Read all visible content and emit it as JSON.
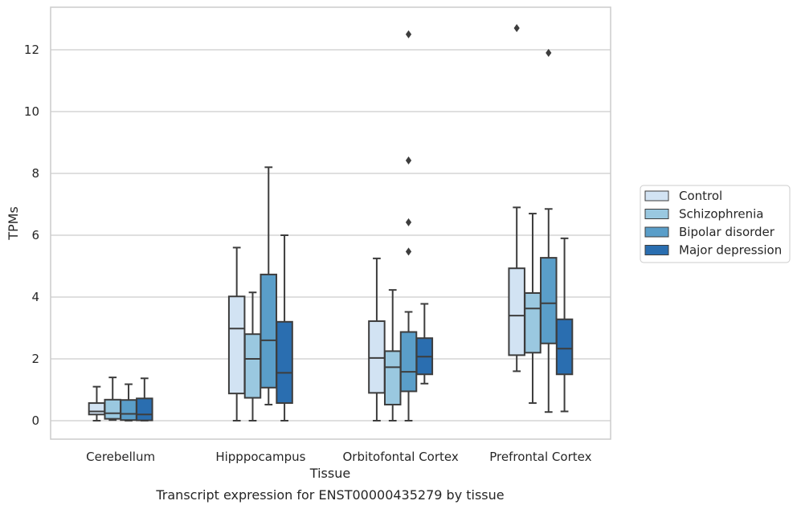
{
  "chart_data": {
    "type": "box",
    "xlabel": "Tissue",
    "ylabel": "TPMs",
    "caption": "Transcript expression for ENST00000435279 by tissue",
    "ylim": [
      -0.6,
      13.3
    ],
    "yticks": [
      0,
      2,
      4,
      6,
      8,
      10,
      12
    ],
    "grid": true,
    "legend_position": "right",
    "categories": [
      "Cerebellum",
      "Hipppocampus",
      "Orbitofontal Cortex",
      "Prefrontal Cortex"
    ],
    "series": [
      {
        "name": "Control",
        "color": "#d2e3f3",
        "boxes": [
          {
            "whisker_low": 0.0,
            "q1": 0.2,
            "median": 0.3,
            "q3": 0.57,
            "whisker_high": 1.1,
            "outliers": []
          },
          {
            "whisker_low": 0.0,
            "q1": 0.88,
            "median": 2.98,
            "q3": 4.02,
            "whisker_high": 5.6,
            "outliers": []
          },
          {
            "whisker_low": 0.0,
            "q1": 0.9,
            "median": 2.03,
            "q3": 3.22,
            "whisker_high": 5.25,
            "outliers": []
          },
          {
            "whisker_low": 1.6,
            "q1": 2.12,
            "median": 3.4,
            "q3": 4.93,
            "whisker_high": 6.9,
            "outliers": [
              12.7
            ]
          }
        ]
      },
      {
        "name": "Schizophrenia",
        "color": "#9ac8e0",
        "boxes": [
          {
            "whisker_low": 0.02,
            "q1": 0.06,
            "median": 0.24,
            "q3": 0.68,
            "whisker_high": 1.4,
            "outliers": []
          },
          {
            "whisker_low": 0.0,
            "q1": 0.74,
            "median": 2.0,
            "q3": 2.8,
            "whisker_high": 4.15,
            "outliers": []
          },
          {
            "whisker_low": 0.0,
            "q1": 0.52,
            "median": 1.73,
            "q3": 2.25,
            "whisker_high": 4.23,
            "outliers": []
          },
          {
            "whisker_low": 0.57,
            "q1": 2.2,
            "median": 3.63,
            "q3": 4.13,
            "whisker_high": 6.7,
            "outliers": []
          }
        ]
      },
      {
        "name": "Bipolar disorder",
        "color": "#5a9ec9",
        "boxes": [
          {
            "whisker_low": 0.0,
            "q1": 0.02,
            "median": 0.22,
            "q3": 0.67,
            "whisker_high": 1.18,
            "outliers": []
          },
          {
            "whisker_low": 0.52,
            "q1": 1.07,
            "median": 2.6,
            "q3": 4.73,
            "whisker_high": 8.2,
            "outliers": []
          },
          {
            "whisker_low": 0.0,
            "q1": 0.95,
            "median": 1.58,
            "q3": 2.87,
            "whisker_high": 3.52,
            "outliers": [
              12.5,
              8.42,
              6.42,
              5.47
            ]
          },
          {
            "whisker_low": 0.28,
            "q1": 2.5,
            "median": 3.8,
            "q3": 5.27,
            "whisker_high": 6.85,
            "outliers": [
              11.9
            ]
          }
        ]
      },
      {
        "name": "Major depression",
        "color": "#2a6eb0",
        "boxes": [
          {
            "whisker_low": 0.0,
            "q1": 0.01,
            "median": 0.2,
            "q3": 0.72,
            "whisker_high": 1.37,
            "outliers": []
          },
          {
            "whisker_low": 0.0,
            "q1": 0.57,
            "median": 1.55,
            "q3": 3.2,
            "whisker_high": 6.0,
            "outliers": []
          },
          {
            "whisker_low": 1.2,
            "q1": 1.5,
            "median": 2.07,
            "q3": 2.67,
            "whisker_high": 3.78,
            "outliers": []
          },
          {
            "whisker_low": 0.3,
            "q1": 1.5,
            "median": 2.33,
            "q3": 3.28,
            "whisker_high": 5.9,
            "outliers": []
          }
        ]
      }
    ]
  }
}
